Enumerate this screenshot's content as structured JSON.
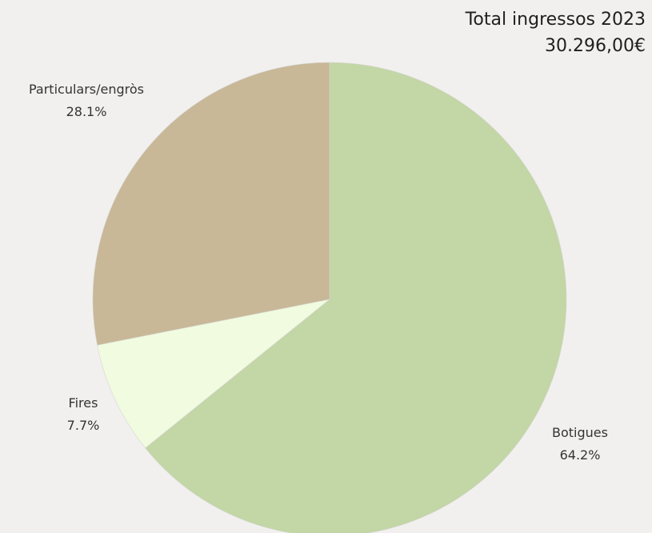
{
  "summary": {
    "title": "Total ingressos 2023",
    "total": "30.296,00€"
  },
  "chart_data": {
    "type": "pie",
    "slices": [
      {
        "label": "Botigues",
        "value": 64.2,
        "value_label": "64.2%",
        "color": "#c3d6a6"
      },
      {
        "label": "Fires",
        "value": 7.7,
        "value_label": "7.7%",
        "color": "#f0fbe0"
      },
      {
        "label": "Particulars/engròs",
        "value": 28.1,
        "value_label": "28.1%",
        "color": "#c8b897"
      }
    ],
    "start": "top",
    "direction": "clockwise",
    "background": "#f1f0ef"
  }
}
